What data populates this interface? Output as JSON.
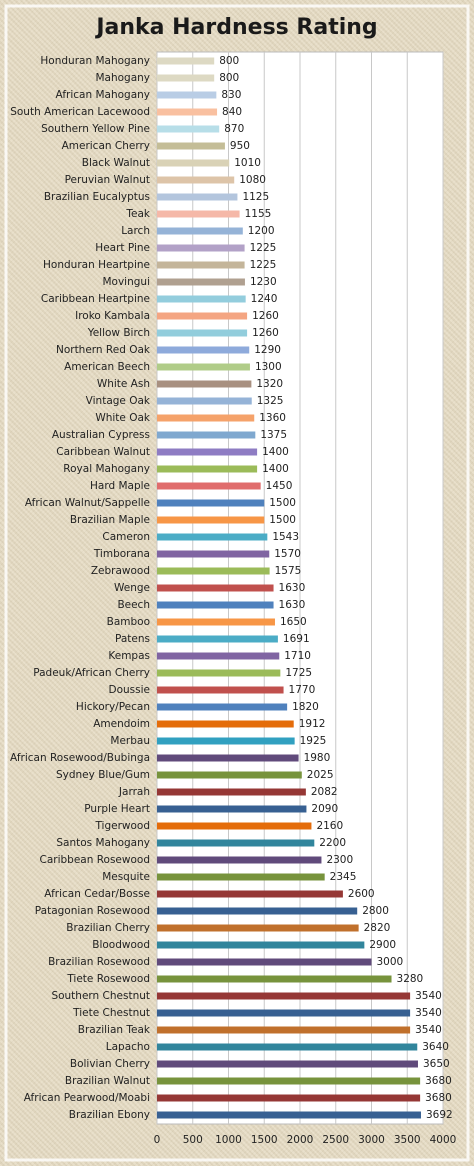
{
  "chart_data": {
    "type": "bar",
    "title": "Janka Hardness Rating",
    "categories": [
      "Honduran Mahogany",
      "Mahogany",
      "African Mahogany",
      "South American Lacewood",
      "Southern Yellow Pine",
      "American Cherry",
      "Black Walnut",
      "Peruvian Walnut",
      "Brazilian Eucalyptus",
      "Teak",
      "Larch",
      "Heart Pine",
      "Honduran Heartpine",
      "Movingui",
      "Caribbean Heartpine",
      "Iroko Kambala",
      "Yellow Birch",
      "Northern Red Oak",
      "American Beech",
      "White Ash",
      "Vintage Oak",
      "White Oak",
      "Australian Cypress",
      "Caribbean Walnut",
      "Royal Mahogany",
      "Hard Maple",
      "African Walnut/Sappelle",
      "Brazilian Maple",
      "Cameron",
      "Timborana",
      "Zebrawood",
      "Wenge",
      "Beech",
      "Bamboo",
      "Patens",
      "Kempas",
      "Padeuk/African Cherry",
      "Doussie",
      "Hickory/Pecan",
      "Amendoim",
      "Merbau",
      "African Rosewood/Bubinga",
      "Sydney Blue/Gum",
      "Jarrah",
      "Purple Heart",
      "Tigerwood",
      "Santos Mahogany",
      "Caribbean Rosewood",
      "Mesquite",
      "African Cedar/Bosse",
      "Patagonian Rosewood",
      "Brazilian Cherry",
      "Bloodwood",
      "Brazilian Rosewood",
      "Tiete Rosewood",
      "Southern Chestnut",
      "Tiete Chestnut",
      "Brazilian Teak",
      "Lapacho",
      "Bolivian Cherry",
      "Brazilian Walnut",
      "African Pearwood/Moabi",
      "Brazilian Ebony"
    ],
    "values": [
      800,
      800,
      830,
      840,
      870,
      950,
      1010,
      1080,
      1125,
      1155,
      1200,
      1225,
      1225,
      1230,
      1240,
      1260,
      1260,
      1290,
      1300,
      1320,
      1325,
      1360,
      1375,
      1400,
      1400,
      1450,
      1500,
      1500,
      1543,
      1570,
      1575,
      1630,
      1630,
      1650,
      1691,
      1710,
      1725,
      1770,
      1820,
      1912,
      1925,
      1980,
      2025,
      2082,
      2090,
      2160,
      2200,
      2300,
      2345,
      2600,
      2800,
      2820,
      2900,
      3000,
      3280,
      3540,
      3540,
      3540,
      3640,
      3650,
      3680,
      3680,
      3692
    ],
    "colors": [
      "#ddd9c3",
      "#ddd9c3",
      "#b9cde5",
      "#f9c0a0",
      "#b7dee8",
      "#c4bd97",
      "#d9d2b6",
      "#ddc4a8",
      "#b3c5dd",
      "#f5b8a8",
      "#95b3d7",
      "#b2a1c7",
      "#c4b59a",
      "#b0a090",
      "#93cddd",
      "#f4a582",
      "#92cddc",
      "#8eaadb",
      "#b0cc88",
      "#a89080",
      "#95b3d7",
      "#f5a26a",
      "#7fa8cf",
      "#8e7cc3",
      "#9bbb59",
      "#e06c6c",
      "#4f81bd",
      "#f79646",
      "#4bacc6",
      "#8064a2",
      "#9bbb59",
      "#c0504d",
      "#4f81bd",
      "#f79646",
      "#4bacc6",
      "#8064a2",
      "#9bbb59",
      "#c0504d",
      "#4f81bd",
      "#e46c0a",
      "#31a0c0",
      "#604a7b",
      "#77933c",
      "#953735",
      "#376092",
      "#e46c0a",
      "#31859c",
      "#604a7b",
      "#77933c",
      "#953735",
      "#376092",
      "#c0702c",
      "#31859c",
      "#604a7b",
      "#77933c",
      "#953735",
      "#376092",
      "#c0702c",
      "#31859c",
      "#604a7b",
      "#77933c",
      "#953735",
      "#376092"
    ],
    "xlim": [
      0,
      4000
    ],
    "xticks": [
      0,
      500,
      1000,
      1500,
      2000,
      2500,
      3000,
      3500,
      4000
    ],
    "grid": true
  }
}
